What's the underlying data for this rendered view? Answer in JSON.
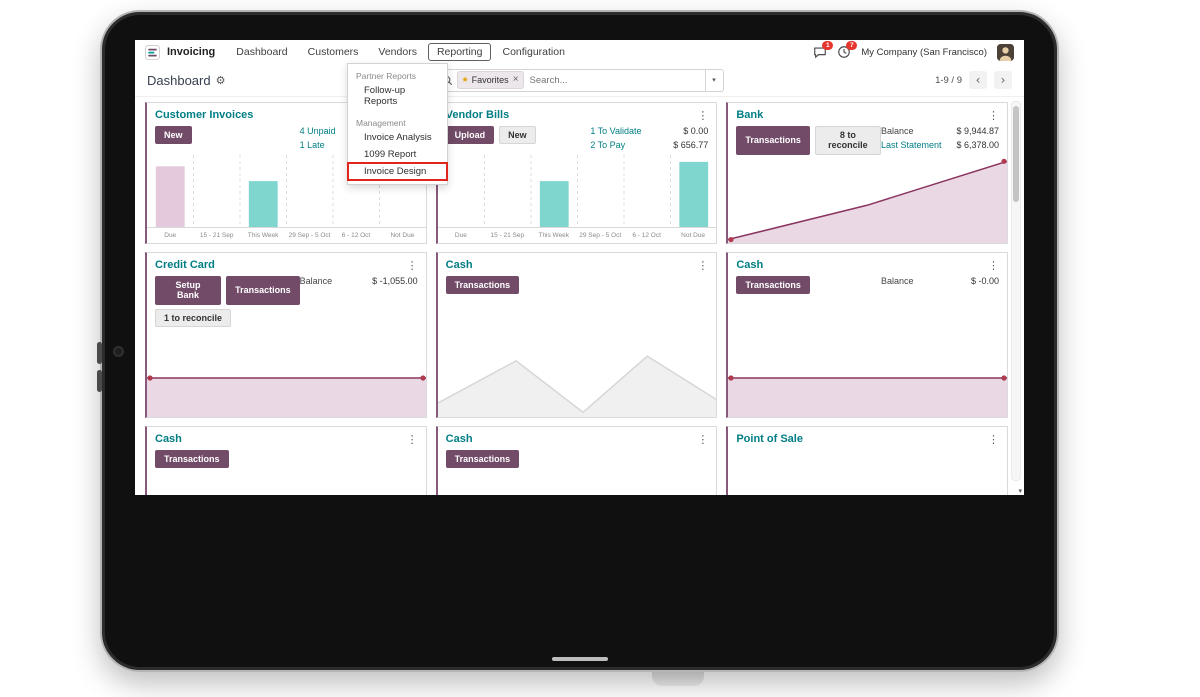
{
  "nav": {
    "app_name": "Invoicing",
    "items": [
      "Dashboard",
      "Customers",
      "Vendors",
      "Reporting",
      "Configuration"
    ],
    "company": "My Company (San Francisco)",
    "messages_badge": "1",
    "activities_badge": "7"
  },
  "breadcrumb": "Dashboard",
  "search": {
    "placeholder": "Search...",
    "facet": "Favorites"
  },
  "pager": {
    "text": "1-9 / 9"
  },
  "reporting_menu": {
    "header1": "Partner Reports",
    "item1": "Follow-up Reports",
    "header2": "Management",
    "item2": "Invoice Analysis",
    "item3": "1099 Report",
    "item4": "Invoice Design"
  },
  "colors": {
    "primary": "#714B67",
    "link_teal": "#017e84",
    "bar_teal": "#7fd6cf",
    "bar_pink": "#e4c9dd",
    "annotation_red": "#e0261c"
  },
  "cards": [
    {
      "title": "Customer Invoices",
      "buttons": [
        {
          "label": "New",
          "style": "primary"
        }
      ],
      "stats": [
        {
          "label": "4 Unpaid",
          "value": ""
        },
        {
          "label": "1 Late",
          "value": ""
        }
      ],
      "chart": {
        "type": "bar",
        "categories": [
          "Due",
          "15 - 21 Sep",
          "This Week",
          "29 Sep - 5 Oct",
          "6 - 12 Oct",
          "Not Due"
        ],
        "bars": [
          {
            "index": 0,
            "height": 0.82,
            "color": "#e4c9dd"
          },
          {
            "index": 2,
            "height": 0.62,
            "color": "#7fd6cf"
          }
        ]
      }
    },
    {
      "title": "Vendor Bills",
      "buttons": [
        {
          "label": "Upload",
          "style": "primary"
        },
        {
          "label": "New",
          "style": "secondary"
        }
      ],
      "stats": [
        {
          "label": "1 To Validate",
          "value": "$ 0.00"
        },
        {
          "label": "2 To Pay",
          "value": "$ 656.77"
        }
      ],
      "chart": {
        "type": "bar",
        "categories": [
          "Due",
          "15 - 21 Sep",
          "This Week",
          "29 Sep - 5 Oct",
          "6 - 12 Oct",
          "Not Due"
        ],
        "bars": [
          {
            "index": 2,
            "height": 0.62,
            "color": "#7fd6cf"
          },
          {
            "index": 5,
            "height": 0.88,
            "color": "#7fd6cf"
          }
        ]
      }
    },
    {
      "title": "Bank",
      "buttons": [
        {
          "label": "Transactions",
          "style": "primary"
        },
        {
          "label": "8 to reconcile",
          "style": "secondary"
        }
      ],
      "stats": [
        {
          "label": "Balance",
          "value": "$ 9,944.87"
        },
        {
          "label": "Last Statement",
          "value": "$ 6,378.00"
        }
      ],
      "chart": {
        "type": "area",
        "points": [
          [
            0,
            0.04
          ],
          [
            0.5,
            0.44
          ],
          [
            1,
            0.95
          ]
        ],
        "line": "#8a3560",
        "fill": "#ead9e4",
        "dots": true,
        "dot_color": "#b03a4e"
      }
    },
    {
      "title": "Credit Card",
      "buttons": [
        {
          "label": "Setup Bank",
          "style": "primary"
        },
        {
          "label": "Transactions",
          "style": "primary"
        },
        {
          "label": "1 to reconcile",
          "style": "secondary"
        }
      ],
      "stats": [
        {
          "label": "Balance",
          "value": "$ -1,055.00"
        }
      ],
      "chart": {
        "type": "area",
        "points": [
          [
            0,
            0.5
          ],
          [
            1,
            0.5
          ]
        ],
        "line": "#8a3560",
        "fill": "#ead9e4",
        "dots": true,
        "dot_color": "#b03a4e"
      }
    },
    {
      "title": "Cash",
      "buttons": [
        {
          "label": "Transactions",
          "style": "primary"
        }
      ],
      "stats": [],
      "chart": {
        "type": "area",
        "points": [
          [
            0,
            0.18
          ],
          [
            0.28,
            0.72
          ],
          [
            0.52,
            0.06
          ],
          [
            0.75,
            0.78
          ],
          [
            1,
            0.22
          ]
        ],
        "line": "#d6d6d6",
        "fill": "#f0f0f0",
        "dots": false
      }
    },
    {
      "title": "Cash",
      "buttons": [
        {
          "label": "Transactions",
          "style": "primary"
        }
      ],
      "stats": [
        {
          "label": "Balance",
          "value": "$ -0.00"
        }
      ],
      "chart": {
        "type": "area",
        "points": [
          [
            0,
            0.5
          ],
          [
            1,
            0.5
          ]
        ],
        "line": "#8a3560",
        "fill": "#ead9e4",
        "dots": true,
        "dot_color": "#b03a4e"
      }
    },
    {
      "title": "Cash",
      "buttons": [
        {
          "label": "Transactions",
          "style": "primary"
        }
      ],
      "stats": []
    },
    {
      "title": "Cash",
      "buttons": [
        {
          "label": "Transactions",
          "style": "primary"
        }
      ],
      "stats": []
    },
    {
      "title": "Point of Sale",
      "buttons": [],
      "stats": []
    }
  ]
}
